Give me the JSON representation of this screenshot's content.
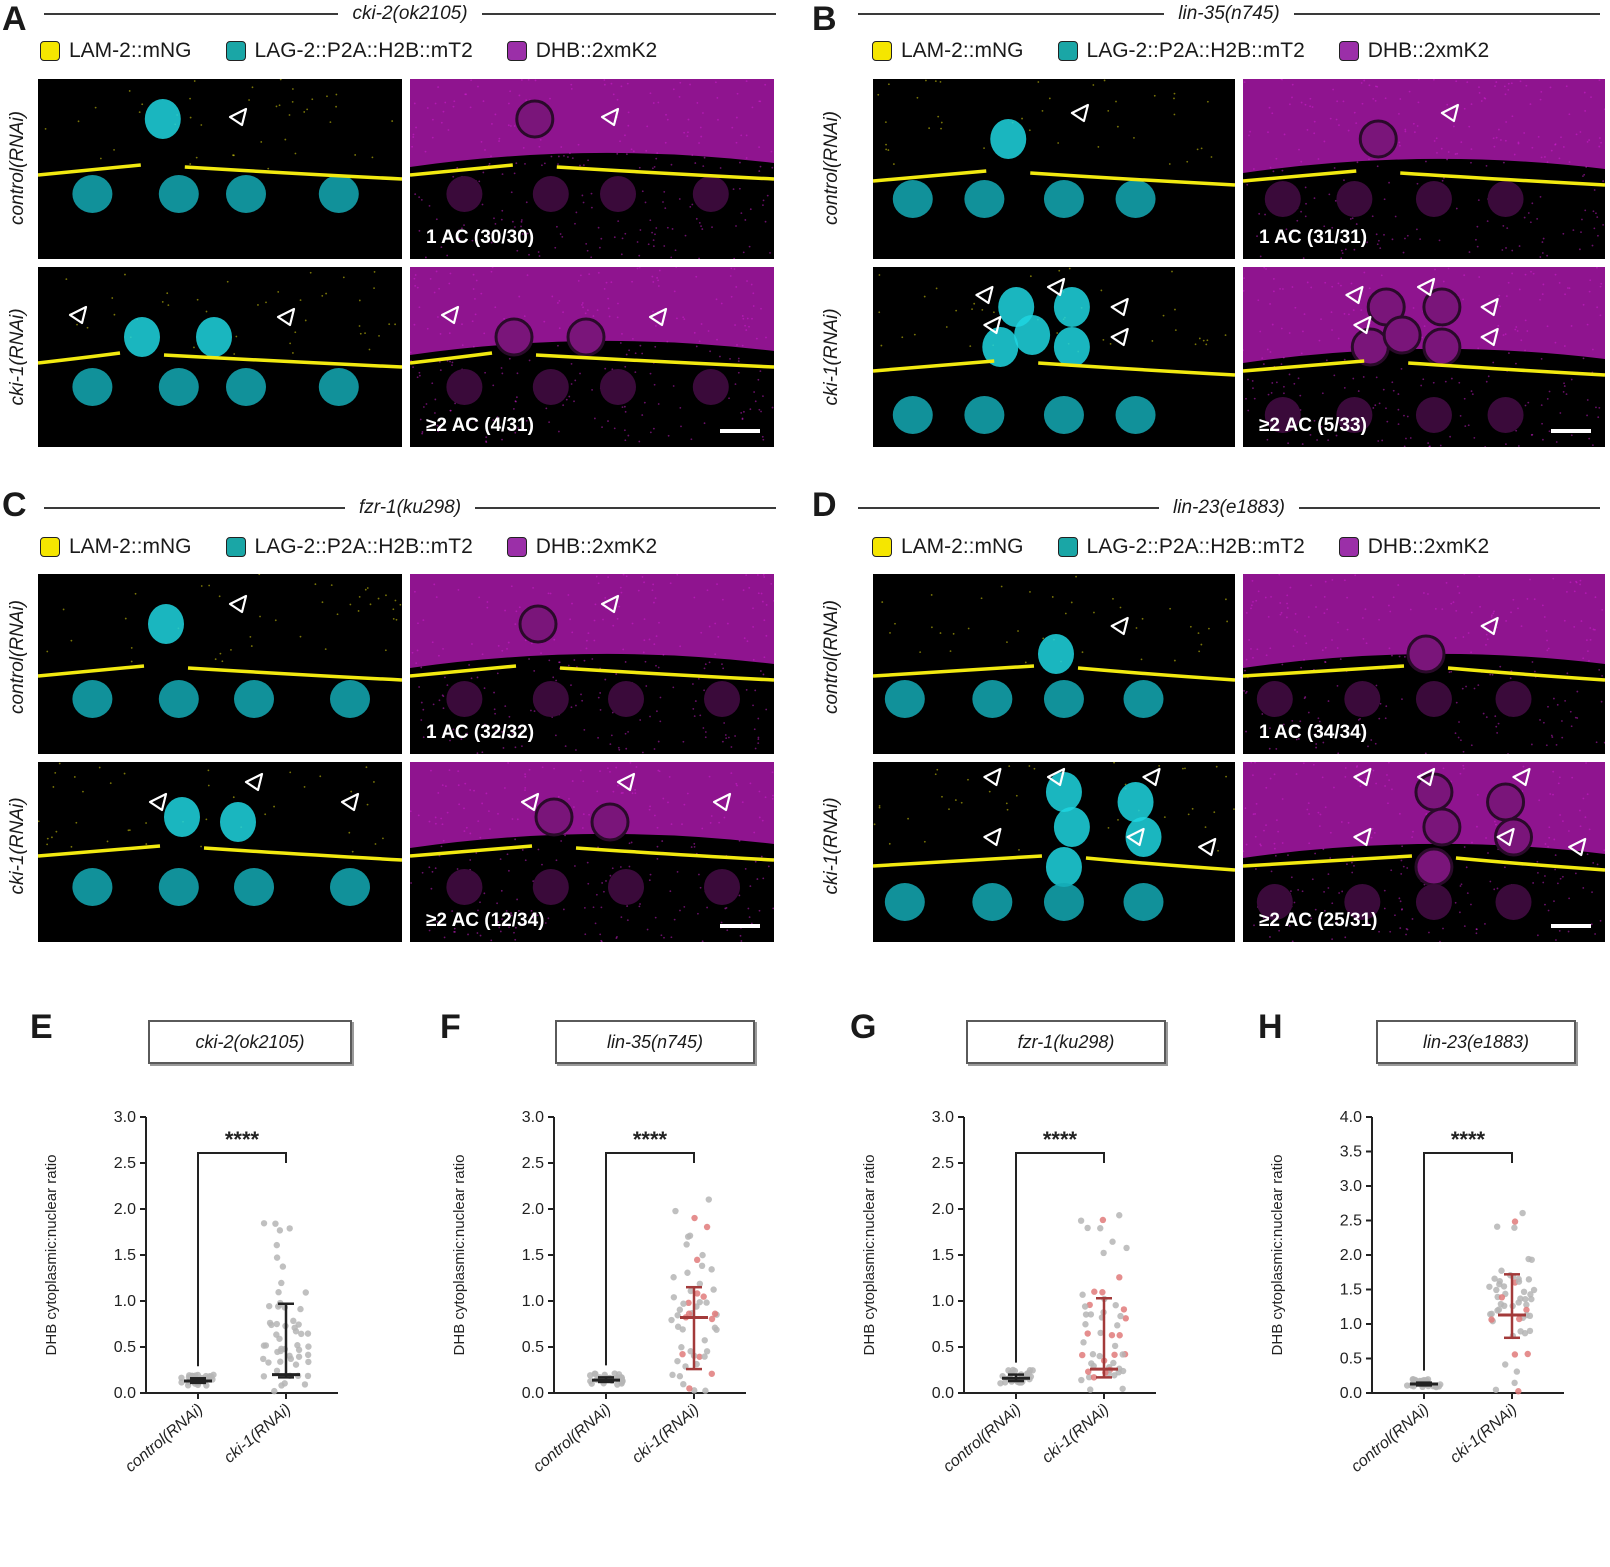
{
  "legend": {
    "lam2": {
      "label": "LAM-2::mNG",
      "color": "#f5e600"
    },
    "lag2": {
      "label": "LAG-2::P2A::H2B::mT2",
      "color": "#1aa6a6"
    },
    "dhb": {
      "label": "DHB::2xmK2",
      "color": "#9b2fa8"
    }
  },
  "row_labels": {
    "control": "control(RNAi)",
    "cki1": "cki-1(RNAi)"
  },
  "panels": [
    {
      "letter": "A",
      "genotype": "cki-2(ok2105)",
      "control_count": "1 AC (30/30)",
      "cki1_count": "≥2 AC (4/31)"
    },
    {
      "letter": "B",
      "genotype": "lin-35(n745)",
      "control_count": "1 AC (31/31)",
      "cki1_count": "≥2 AC (5/33)"
    },
    {
      "letter": "C",
      "genotype": "fzr-1(ku298)",
      "control_count": "1 AC (32/32)",
      "cki1_count": "≥2 AC (12/34)"
    },
    {
      "letter": "D",
      "genotype": "lin-23(e1883)",
      "control_count": "1 AC (34/34)",
      "cki1_count": "≥2 AC (25/31)"
    }
  ],
  "colors": {
    "magenta": "#d41fd4",
    "cyan": "#1fd6e0",
    "yellow": "#f2ea10",
    "dot_grey": "#b5b5b5",
    "dot_red": "#e07a7a",
    "bar_dark": "#222222",
    "bar_red": "#a33a3a"
  },
  "chart_data": [
    {
      "letter": "E",
      "type": "scatter",
      "title": "cki-2(ok2105)",
      "ylabel": "DHB cytoplasmic:nuclear ratio",
      "categories": [
        "control(RNAi)",
        "cki-1(RNAi)"
      ],
      "ylim": [
        0,
        3.0
      ],
      "yticks": [
        "0.0",
        "0.5",
        "1.0",
        "1.5",
        "2.0",
        "2.5",
        "3.0"
      ],
      "median": [
        0.13,
        0.2
      ],
      "iqr": [
        [
          0.11,
          0.16
        ],
        [
          0.17,
          0.97
        ]
      ],
      "significance": "****",
      "red_points": false
    },
    {
      "letter": "F",
      "type": "scatter",
      "title": "lin-35(n745)",
      "ylabel": "DHB cytoplasmic:nuclear ratio",
      "categories": [
        "control(RNAi)",
        "cki-1(RNAi)"
      ],
      "ylim": [
        0,
        3.0
      ],
      "yticks": [
        "0.0",
        "0.5",
        "1.0",
        "1.5",
        "2.0",
        "2.5",
        "3.0"
      ],
      "median": [
        0.14,
        0.82
      ],
      "iqr": [
        [
          0.12,
          0.17
        ],
        [
          0.26,
          1.15
        ]
      ],
      "significance": "****",
      "red_points": true
    },
    {
      "letter": "G",
      "type": "scatter",
      "title": "fzr-1(ku298)",
      "ylabel": "DHB cytoplasmic:nuclear ratio",
      "categories": [
        "control(RNAi)",
        "cki-1(RNAi)"
      ],
      "ylim": [
        0,
        3.0
      ],
      "yticks": [
        "0.0",
        "0.5",
        "1.0",
        "1.5",
        "2.0",
        "2.5",
        "3.0"
      ],
      "median": [
        0.16,
        0.26
      ],
      "iqr": [
        [
          0.13,
          0.2
        ],
        [
          0.17,
          1.03
        ]
      ],
      "significance": "****",
      "red_points": true
    },
    {
      "letter": "H",
      "type": "scatter",
      "title": "lin-23(e1883)",
      "ylabel": "DHB cytoplasmic:nuclear ratio",
      "categories": [
        "control(RNAi)",
        "cki-1(RNAi)"
      ],
      "ylim": [
        0,
        4.0
      ],
      "yticks": [
        "0.0",
        "0.5",
        "1.0",
        "1.5",
        "2.0",
        "2.5",
        "3.0",
        "3.5",
        "4.0"
      ],
      "median": [
        0.13,
        1.13
      ],
      "iqr": [
        [
          0.11,
          0.15
        ],
        [
          0.8,
          1.72
        ]
      ],
      "significance": "****",
      "red_points": true
    }
  ]
}
